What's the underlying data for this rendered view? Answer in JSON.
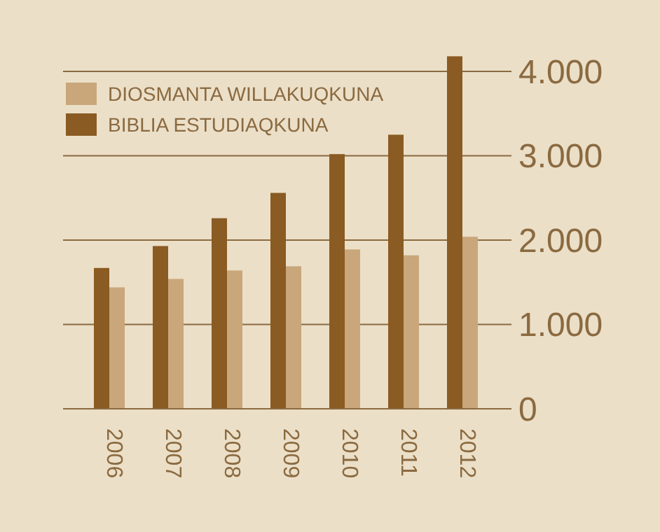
{
  "chart_data": {
    "type": "bar",
    "categories": [
      "2006",
      "2007",
      "2008",
      "2009",
      "2010",
      "2011",
      "2012"
    ],
    "series": [
      {
        "name": "DIOSMANTA WILLAKUQKUNA",
        "color": "#c9a77a",
        "values": [
          1440,
          1540,
          1640,
          1690,
          1890,
          1820,
          2040
        ]
      },
      {
        "name": "BIBLIA ESTUDIAQKUNA",
        "color": "#8a5b22",
        "values": [
          1670,
          1930,
          2260,
          2560,
          3020,
          3250,
          4180
        ]
      }
    ],
    "ylim": [
      0,
      4200
    ],
    "yticks": [
      0,
      {
        "value": 1000,
        "label": "1.000"
      },
      {
        "value": 2000,
        "label": "2.000"
      },
      {
        "value": 3000,
        "label": "3.000"
      },
      {
        "value": 4000,
        "label": "4.000"
      }
    ],
    "grid": "y",
    "legend": "top left"
  }
}
